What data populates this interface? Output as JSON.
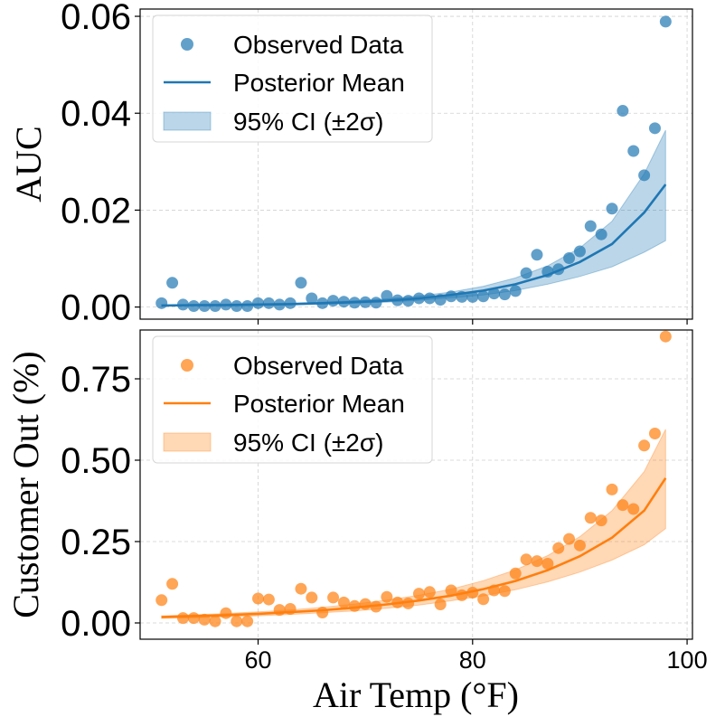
{
  "chart_data": [
    {
      "type": "scatter",
      "ylabel": "AUC",
      "xlabel": "",
      "xlim": [
        49,
        100.5
      ],
      "ylim": [
        -0.0025,
        0.0615
      ],
      "xticks": [
        60,
        80,
        100
      ],
      "yticks": [
        0.0,
        0.02,
        0.04,
        0.06
      ],
      "ytick_labels": [
        "0.00",
        "0.02",
        "0.04",
        "0.06"
      ],
      "grid": true,
      "color": "#1f77b4",
      "legend_position": "top-left",
      "legend": [
        "Observed Data",
        "Posterior Mean",
        "95% CI (±2σ)"
      ],
      "observed": {
        "x": [
          51,
          52,
          53,
          54,
          55,
          56,
          57,
          58,
          59,
          60,
          61,
          62,
          63,
          64,
          65,
          66,
          67,
          68,
          69,
          70,
          71,
          72,
          73,
          74,
          75,
          76,
          77,
          78,
          79,
          80,
          81,
          82,
          83,
          84,
          85,
          86,
          87,
          88,
          89,
          90,
          91,
          92,
          93,
          94,
          95,
          96,
          97,
          98
        ],
        "y": [
          0.0008,
          0.005,
          0.0005,
          0.0002,
          0.0002,
          0.0002,
          0.0005,
          0.0002,
          0.0002,
          0.0008,
          0.0008,
          0.0005,
          0.0008,
          0.005,
          0.0018,
          0.0008,
          0.0013,
          0.0011,
          0.0009,
          0.001,
          0.0009,
          0.0023,
          0.0014,
          0.0013,
          0.0018,
          0.0018,
          0.0015,
          0.0022,
          0.0021,
          0.0021,
          0.0022,
          0.0028,
          0.0026,
          0.0033,
          0.007,
          0.0108,
          0.0073,
          0.0078,
          0.0101,
          0.0115,
          0.0167,
          0.015,
          0.0203,
          0.0405,
          0.0322,
          0.0272,
          0.0369,
          0.0589
        ]
      },
      "posterior_mean": {
        "x": [
          51,
          54,
          57,
          60,
          63,
          66,
          69,
          72,
          75,
          78,
          81,
          84,
          87,
          90,
          93,
          96,
          98
        ],
        "y": [
          0.0003,
          0.0004,
          0.0004,
          0.0005,
          0.0006,
          0.0008,
          0.001,
          0.0013,
          0.0018,
          0.0025,
          0.0034,
          0.0047,
          0.0066,
          0.0093,
          0.013,
          0.0195,
          0.0253
        ]
      },
      "ci_band": {
        "x": [
          51,
          54,
          57,
          60,
          63,
          66,
          69,
          72,
          75,
          78,
          81,
          84,
          87,
          90,
          93,
          96,
          98
        ],
        "lower": [
          0.0002,
          0.0003,
          0.0003,
          0.0004,
          0.0005,
          0.0006,
          0.0008,
          0.001,
          0.0014,
          0.0019,
          0.0025,
          0.0034,
          0.0047,
          0.0063,
          0.0083,
          0.0113,
          0.0137
        ],
        "upper": [
          0.0005,
          0.0005,
          0.0006,
          0.0007,
          0.0008,
          0.001,
          0.0013,
          0.0017,
          0.0023,
          0.0031,
          0.0043,
          0.006,
          0.0085,
          0.0122,
          0.0177,
          0.0275,
          0.0365
        ]
      }
    },
    {
      "type": "scatter",
      "ylabel": "Customer Out (%)",
      "xlabel": "Air Temp (°F)",
      "xlim": [
        49,
        100.5
      ],
      "ylim": [
        -0.05,
        0.9
      ],
      "xticks": [
        60,
        80,
        100
      ],
      "yticks": [
        0.0,
        0.25,
        0.5,
        0.75
      ],
      "ytick_labels": [
        "0.00",
        "0.25",
        "0.50",
        "0.75"
      ],
      "grid": true,
      "color": "#ff7f0e",
      "legend_position": "top-left",
      "legend": [
        "Observed Data",
        "Posterior Mean",
        "95% CI (±2σ)"
      ],
      "observed": {
        "x": [
          51,
          52,
          53,
          54,
          55,
          56,
          57,
          58,
          59,
          60,
          61,
          62,
          63,
          64,
          65,
          66,
          67,
          68,
          69,
          70,
          71,
          72,
          73,
          74,
          75,
          76,
          77,
          78,
          79,
          80,
          81,
          82,
          83,
          84,
          85,
          86,
          87,
          88,
          89,
          90,
          91,
          92,
          93,
          94,
          95,
          96,
          97,
          98
        ],
        "y": [
          0.07,
          0.12,
          0.015,
          0.015,
          0.01,
          0.005,
          0.03,
          0.005,
          0.005,
          0.075,
          0.072,
          0.04,
          0.043,
          0.105,
          0.078,
          0.032,
          0.078,
          0.063,
          0.052,
          0.058,
          0.05,
          0.08,
          0.063,
          0.06,
          0.09,
          0.095,
          0.057,
          0.1,
          0.085,
          0.093,
          0.073,
          0.1,
          0.098,
          0.152,
          0.195,
          0.19,
          0.182,
          0.23,
          0.258,
          0.238,
          0.323,
          0.315,
          0.41,
          0.362,
          0.35,
          0.545,
          0.582,
          0.88
        ]
      },
      "posterior_mean": {
        "x": [
          51,
          54,
          57,
          60,
          63,
          66,
          69,
          72,
          75,
          78,
          81,
          84,
          87,
          90,
          93,
          96,
          98
        ],
        "y": [
          0.018,
          0.021,
          0.024,
          0.028,
          0.033,
          0.039,
          0.047,
          0.057,
          0.069,
          0.084,
          0.104,
          0.129,
          0.162,
          0.205,
          0.262,
          0.345,
          0.445
        ]
      },
      "ci_band": {
        "x": [
          51,
          54,
          57,
          60,
          63,
          66,
          69,
          72,
          75,
          78,
          81,
          84,
          87,
          90,
          93,
          96,
          98
        ],
        "lower": [
          0.014,
          0.016,
          0.019,
          0.022,
          0.026,
          0.031,
          0.037,
          0.045,
          0.055,
          0.068,
          0.083,
          0.102,
          0.126,
          0.156,
          0.193,
          0.24,
          0.29
        ],
        "upper": [
          0.022,
          0.025,
          0.029,
          0.034,
          0.04,
          0.048,
          0.058,
          0.07,
          0.085,
          0.104,
          0.13,
          0.163,
          0.207,
          0.265,
          0.345,
          0.465,
          0.595
        ]
      }
    }
  ]
}
